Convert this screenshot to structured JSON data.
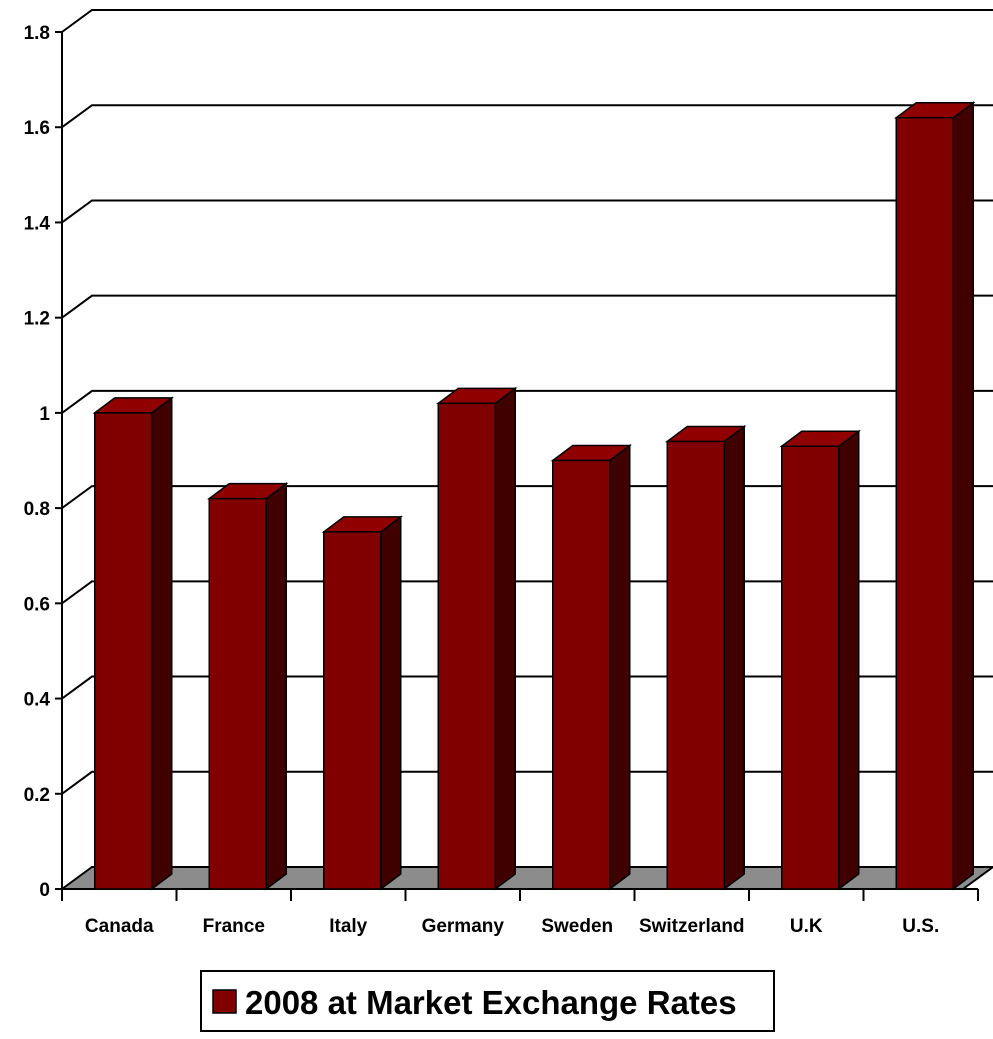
{
  "chart_data": {
    "type": "bar",
    "style": "3d-column",
    "categories": [
      "Canada",
      "France",
      "Italy",
      "Germany",
      "Sweden",
      "Switzerland",
      "U.K",
      "U.S."
    ],
    "series": [
      {
        "name": "2008 at Market Exchange Rates",
        "values": [
          1.0,
          0.82,
          0.75,
          1.02,
          0.9,
          0.94,
          0.93,
          1.62
        ]
      }
    ],
    "ylim": [
      0,
      1.8
    ],
    "yticks": [
      "0",
      "0.2",
      "0.4",
      "0.6",
      "0.8",
      "1",
      "1.2",
      "1.4",
      "1.6",
      "1.8"
    ],
    "grid": true,
    "legend_position": "bottom",
    "colors": {
      "bar_front": "#800000",
      "bar_side": "#400000",
      "bar_top": "#900000",
      "floor": "#8c8c8c",
      "gridline": "#000000"
    }
  }
}
